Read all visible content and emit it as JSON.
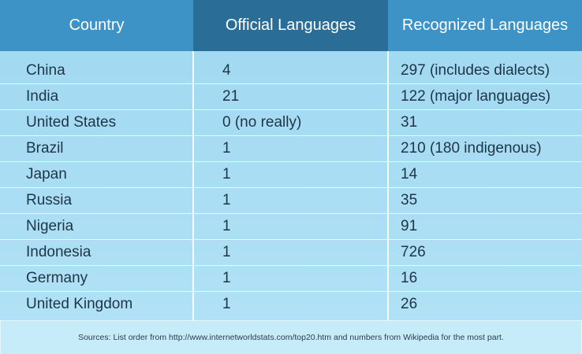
{
  "table": {
    "header": [
      "Country",
      "Official Languages",
      "Recognized Languages"
    ],
    "rows": [
      [
        "China",
        4,
        "297 (includes dialects)"
      ],
      [
        "India",
        21,
        "122 (major languages)"
      ],
      [
        "United States",
        "0 (no really)",
        31
      ],
      [
        "Brazil",
        1,
        "210 (180 indigenous)"
      ],
      [
        "Japan",
        1,
        14
      ],
      [
        "Russia",
        1,
        35
      ],
      [
        "Nigeria",
        1,
        91
      ],
      [
        "Indonesia",
        1,
        726
      ],
      [
        "Germany",
        1,
        16
      ],
      [
        "United Kingdom",
        1,
        26
      ]
    ]
  },
  "footer": {
    "source": "Sources: List order from http://www.internetworldstats.com/top20.htm and numbers from Wikipedia for the most part."
  }
}
